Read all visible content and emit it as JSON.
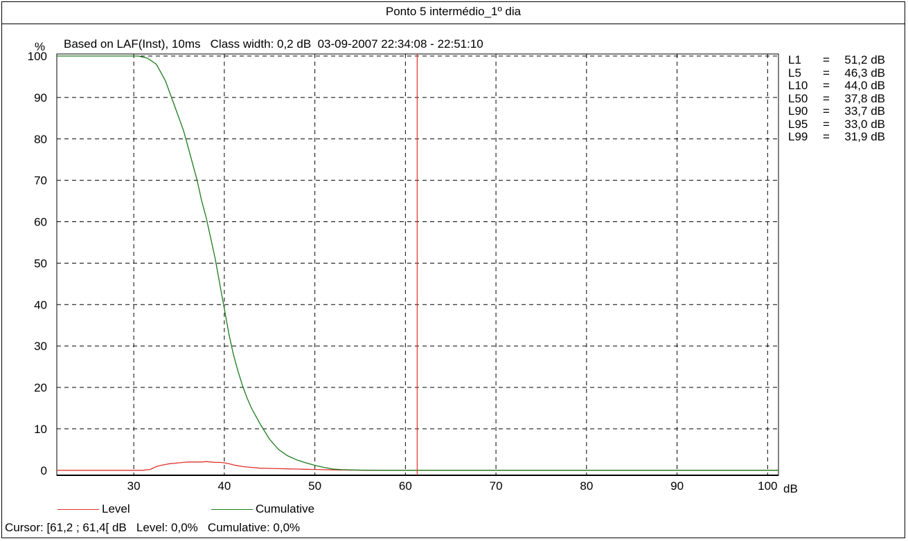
{
  "title": "Ponto 5 intermédio_1º dia",
  "subtitle": "Based on LAF(Inst), 10ms   Class width: 0,2 dB  03-09-2007 22:34:08 - 22:51:10",
  "y_unit": "%",
  "x_unit": "dB",
  "stats": [
    {
      "name": "L1",
      "value": "51,2 dB"
    },
    {
      "name": "L5",
      "value": "46,3 dB"
    },
    {
      "name": "L10",
      "value": "44,0 dB"
    },
    {
      "name": "L50",
      "value": "37,8 dB"
    },
    {
      "name": "L90",
      "value": "33,7 dB"
    },
    {
      "name": "L95",
      "value": "33,0 dB"
    },
    {
      "name": "L99",
      "value": "31,9 dB"
    }
  ],
  "legend": {
    "level": "Level",
    "cumulative": "Cumulative"
  },
  "cursor_text": "Cursor: [61,2 ; 61,4[ dB   Level: 0,0%   Cumulative: 0,0%",
  "colors": {
    "level": "#e0302a",
    "cumulative": "#1a7a1a",
    "cursor": "#e0302a",
    "grid": "#000000"
  },
  "chart_data": {
    "type": "line",
    "title": "Ponto 5 intermédio_1º dia",
    "xlabel": "dB",
    "ylabel": "%",
    "xlim": [
      21.5,
      101.2
    ],
    "ylim": [
      -1.2,
      100.5
    ],
    "xticks": [
      30,
      40,
      50,
      60,
      70,
      80,
      90,
      100
    ],
    "yticks": [
      0,
      10,
      20,
      30,
      40,
      50,
      60,
      70,
      80,
      90,
      100
    ],
    "grid": true,
    "legend": "bottom-left",
    "cursor_x": 61.3,
    "series": [
      {
        "name": "Level",
        "x": [
          21.5,
          31.0,
          31.8,
          32.5,
          33.0,
          33.5,
          34.0,
          34.5,
          35.0,
          35.5,
          36.0,
          36.5,
          37.0,
          37.5,
          38.0,
          38.5,
          39.0,
          39.5,
          40.0,
          40.5,
          41.0,
          41.5,
          42.0,
          42.5,
          43.0,
          43.5,
          44.0,
          45.0,
          46.0,
          47.0,
          48.0,
          49.0,
          50.0,
          51.0,
          52.0,
          54.0,
          56.0,
          101.2
        ],
        "y": [
          0,
          0,
          0.2,
          0.9,
          1.2,
          1.4,
          1.6,
          1.7,
          1.8,
          1.9,
          2.0,
          2.0,
          2.0,
          2.0,
          2.1,
          2.0,
          1.9,
          1.9,
          1.8,
          1.6,
          1.3,
          1.1,
          0.9,
          0.8,
          0.7,
          0.6,
          0.5,
          0.45,
          0.4,
          0.35,
          0.3,
          0.25,
          0.2,
          0.15,
          0.1,
          0.05,
          0,
          0
        ]
      },
      {
        "name": "Cumulative",
        "x": [
          21.5,
          29.0,
          30.5,
          31.5,
          32.5,
          33.0,
          33.5,
          34.0,
          34.5,
          35.0,
          35.5,
          36.0,
          36.5,
          37.0,
          37.5,
          38.0,
          38.5,
          39.0,
          39.5,
          40.0,
          40.5,
          41.0,
          41.5,
          42.0,
          42.5,
          43.0,
          44.0,
          45.0,
          46.0,
          47.0,
          48.0,
          49.0,
          50.0,
          51.0,
          52.0,
          53.0,
          55.0,
          58.0,
          61.0,
          101.2
        ],
        "y": [
          100,
          100,
          100,
          99.5,
          98,
          96,
          94,
          91,
          88,
          85,
          82,
          78,
          74,
          70,
          65,
          61,
          56,
          51,
          45,
          39,
          33,
          28,
          24,
          20.5,
          17.5,
          15,
          11,
          7.5,
          5,
          3.5,
          2.5,
          1.8,
          1.2,
          0.7,
          0.3,
          0.15,
          0.05,
          0,
          0,
          0
        ]
      }
    ]
  }
}
